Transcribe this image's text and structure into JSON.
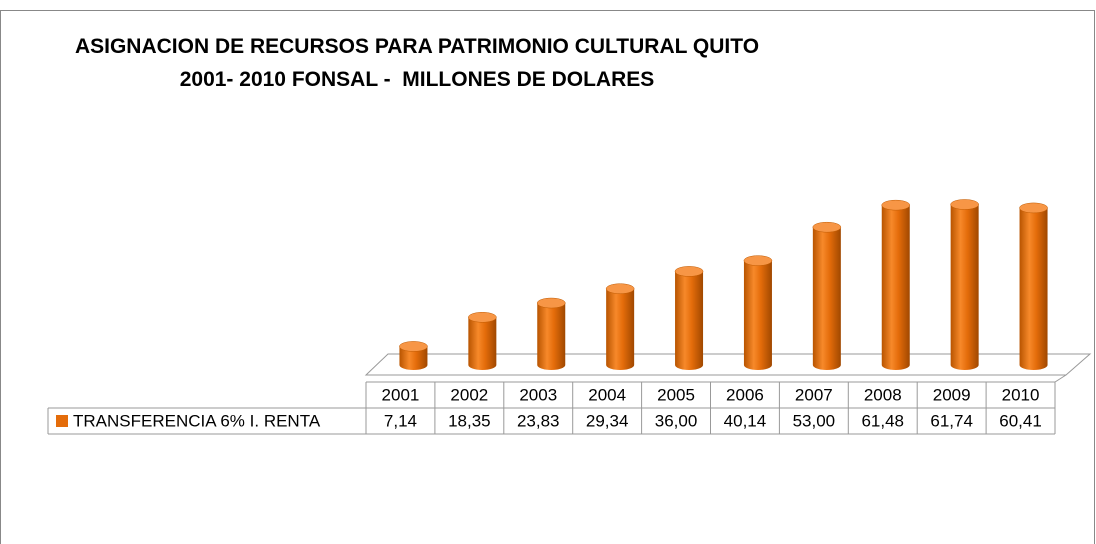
{
  "chart_data": {
    "type": "bar",
    "title": "ASIGNACION DE RECURSOS PARA PATRIMONIO CULTURAL QUITO\n2001- 2010 FONSAL -  MILLONES DE DOLARES",
    "categories": [
      "2001",
      "2002",
      "2003",
      "2004",
      "2005",
      "2006",
      "2007",
      "2008",
      "2009",
      "2010"
    ],
    "series": [
      {
        "name": "TRANSFERENCIA 6% I. RENTA",
        "color": "#e46c0a",
        "values": [
          7.14,
          18.35,
          23.83,
          29.34,
          36.0,
          40.14,
          53.0,
          61.48,
          61.74,
          60.41
        ],
        "value_labels": [
          "7,14",
          "18,35",
          "23,83",
          "29,34",
          "36,00",
          "40,14",
          "53,00",
          "61,48",
          "61,74",
          "60,41"
        ]
      }
    ],
    "legend": true
  }
}
